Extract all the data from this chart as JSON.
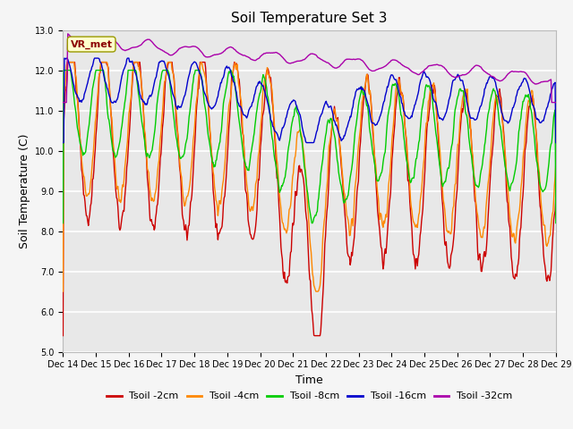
{
  "title": "Soil Temperature Set 3",
  "xlabel": "Time",
  "ylabel": "Soil Temperature (C)",
  "ylim": [
    5.0,
    13.0
  ],
  "yticks": [
    5.0,
    6.0,
    7.0,
    8.0,
    9.0,
    10.0,
    11.0,
    12.0,
    13.0
  ],
  "xtick_labels": [
    "Dec 14",
    "Dec 15",
    "Dec 16",
    "Dec 17",
    "Dec 18",
    "Dec 19",
    "Dec 20",
    "Dec 21",
    "Dec 22",
    "Dec 23",
    "Dec 24",
    "Dec 25",
    "Dec 26",
    "Dec 27",
    "Dec 28",
    "Dec 29"
  ],
  "series_colors": [
    "#cc0000",
    "#ff8800",
    "#00cc00",
    "#0000cc",
    "#aa00aa"
  ],
  "series_labels": [
    "Tsoil -2cm",
    "Tsoil -4cm",
    "Tsoil -8cm",
    "Tsoil -16cm",
    "Tsoil -32cm"
  ],
  "vr_met_label": "VR_met",
  "plot_bg_color": "#e8e8e8",
  "fig_bg_color": "#f5f5f5",
  "grid_color": "#ffffff",
  "title_fontsize": 11,
  "axis_label_fontsize": 9,
  "tick_fontsize": 7,
  "legend_fontsize": 8
}
